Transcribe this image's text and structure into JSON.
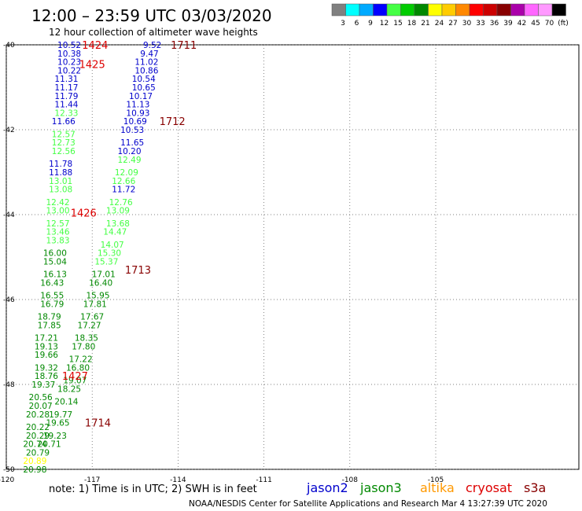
{
  "title": "12:00 – 23:59 UTC 03/03/2020",
  "subtitle": "12 hour collection of altimeter wave heights",
  "color_scale": {
    "colors": [
      "#808080",
      "#00ffff",
      "#00aaff",
      "#0000ff",
      "#44ff44",
      "#00cc00",
      "#008800",
      "#ffff00",
      "#ffcc00",
      "#ff8800",
      "#ff0000",
      "#cc0000",
      "#880000",
      "#aa00aa",
      "#ff66ff",
      "#ff99ff",
      "#000000"
    ],
    "labels": [
      "3",
      "6",
      "9",
      "12",
      "15",
      "18",
      "21",
      "24",
      "27",
      "30",
      "33",
      "36",
      "39",
      "42",
      "45",
      "70",
      "(ft)"
    ]
  },
  "footer": {
    "note": "note:  1) Time is in UTC;  2) SWH is in feet",
    "satellites": [
      {
        "name": "jason2",
        "color": "#0000cc"
      },
      {
        "name": "jason3",
        "color": "#008800"
      },
      {
        "name": "altika",
        "color": "#ff9900"
      },
      {
        "name": "cryosat",
        "color": "#dd0000"
      },
      {
        "name": "s3a",
        "color": "#880000"
      }
    ],
    "credit": "NOAA/NESDIS Center for Satellite Applications and Research   Mar  4 13:27:39 UTC 2020"
  },
  "chart_data": {
    "type": "scatter",
    "xlim": [
      -120,
      -100
    ],
    "ylim": [
      -50,
      -40
    ],
    "x_ticks": [
      "-120",
      "-117",
      "-114",
      "-111",
      "-108",
      "-105"
    ],
    "y_ticks": [
      "-40",
      "-42",
      "-44",
      "-46",
      "-48",
      "-50"
    ],
    "grid": true,
    "tracks": [
      {
        "id": "track-a",
        "color": "#0000cc",
        "points": [
          [
            "-117.8",
            "-40.0",
            "10.52"
          ],
          [
            "-117.8",
            "-40.2",
            "10.38"
          ],
          [
            "-117.8",
            "-40.4",
            "10.23"
          ],
          [
            "-117.8",
            "-40.6",
            "10.22"
          ],
          [
            "-117.9",
            "-40.8",
            "11.31"
          ],
          [
            "-117.9",
            "-41.0",
            "11.17"
          ],
          [
            "-117.9",
            "-41.2",
            "11.79"
          ],
          [
            "-117.9",
            "-41.4",
            "11.44"
          ]
        ]
      },
      {
        "id": "track-a2",
        "color": "#44ff44",
        "points": [
          [
            "-117.9",
            "-41.6",
            "12.33"
          ]
        ]
      },
      {
        "id": "track-a3",
        "color": "#0000cc",
        "points": [
          [
            "-118.0",
            "-41.8",
            "11.66"
          ]
        ]
      },
      {
        "id": "track-a4",
        "color": "#44ff44",
        "points": [
          [
            "-118.0",
            "-42.1",
            "12.57"
          ],
          [
            "-118.0",
            "-42.3",
            "12.73"
          ],
          [
            "-118.0",
            "-42.5",
            "12.56"
          ]
        ]
      },
      {
        "id": "track-a5",
        "color": "#0000cc",
        "points": [
          [
            "-118.1",
            "-42.8",
            "11.78"
          ],
          [
            "-118.1",
            "-43.0",
            "11.88"
          ]
        ]
      },
      {
        "id": "track-a6",
        "color": "#44ff44",
        "points": [
          [
            "-118.1",
            "-43.2",
            "13.01"
          ],
          [
            "-118.1",
            "-43.4",
            "13.08"
          ],
          [
            "-118.2",
            "-43.7",
            "12.42"
          ],
          [
            "-118.2",
            "-43.9",
            "13.00"
          ],
          [
            "-118.2",
            "-44.2",
            "12.57"
          ],
          [
            "-118.2",
            "-44.4",
            "13.46"
          ],
          [
            "-118.2",
            "-44.6",
            "13.83"
          ]
        ]
      },
      {
        "id": "track-a7",
        "color": "#008800",
        "points": [
          [
            "-118.3",
            "-44.9",
            "16.00"
          ],
          [
            "-118.3",
            "-45.1",
            "15.04"
          ],
          [
            "-118.3",
            "-45.4",
            "16.13"
          ],
          [
            "-118.4",
            "-45.6",
            "16.43"
          ],
          [
            "-118.4",
            "-45.9",
            "16.55"
          ],
          [
            "-118.4",
            "-46.1",
            "16.79"
          ],
          [
            "-118.5",
            "-46.4",
            "18.79"
          ],
          [
            "-118.5",
            "-46.6",
            "17.85"
          ],
          [
            "-118.6",
            "-46.9",
            "17.21"
          ],
          [
            "-118.6",
            "-47.1",
            "19.13"
          ],
          [
            "-118.6",
            "-47.3",
            "19.66"
          ],
          [
            "-118.6",
            "-47.6",
            "19.32"
          ],
          [
            "-118.6",
            "-47.8",
            "18.76"
          ],
          [
            "-118.7",
            "-48.0",
            "19.37"
          ],
          [
            "-118.8",
            "-48.3",
            "20.56"
          ],
          [
            "-118.8",
            "-48.5",
            "20.07"
          ],
          [
            "-118.9",
            "-48.7",
            "20.28"
          ],
          [
            "-118.9",
            "-49.0",
            "20.22"
          ],
          [
            "-118.9",
            "-49.2",
            "20.29"
          ],
          [
            "-119.0",
            "-49.4",
            "20.74"
          ],
          [
            "-118.9",
            "-49.6",
            "20.79"
          ]
        ]
      },
      {
        "id": "track-a8",
        "color": "#ffff00",
        "points": [
          [
            "-119.0",
            "-49.8",
            "20.89"
          ]
        ]
      },
      {
        "id": "track-a9",
        "color": "#008800",
        "points": [
          [
            "-119.0",
            "-50.0",
            "20.98"
          ]
        ]
      },
      {
        "id": "track-b",
        "color": "#0000cc",
        "points": [
          [
            "-114.9",
            "-40.0",
            "9.52"
          ],
          [
            "-115.0",
            "-40.2",
            "9.47"
          ],
          [
            "-115.1",
            "-40.4",
            "11.02"
          ],
          [
            "-115.1",
            "-40.6",
            "10.86"
          ],
          [
            "-115.2",
            "-40.8",
            "10.54"
          ],
          [
            "-115.2",
            "-41.0",
            "10.65"
          ],
          [
            "-115.3",
            "-41.2",
            "10.17"
          ],
          [
            "-115.4",
            "-41.4",
            "11.13"
          ],
          [
            "-115.4",
            "-41.6",
            "10.93"
          ],
          [
            "-115.5",
            "-41.8",
            "10.69"
          ],
          [
            "-115.6",
            "-42.0",
            "10.53"
          ],
          [
            "-115.6",
            "-42.3",
            "11.65"
          ],
          [
            "-115.7",
            "-42.5",
            "10.20"
          ]
        ]
      },
      {
        "id": "track-b2",
        "color": "#44ff44",
        "points": [
          [
            "-115.7",
            "-42.7",
            "12.49"
          ],
          [
            "-115.8",
            "-43.0",
            "12.09"
          ],
          [
            "-115.9",
            "-43.2",
            "12.66"
          ]
        ]
      },
      {
        "id": "track-b3",
        "color": "#0000cc",
        "points": [
          [
            "-115.9",
            "-43.4",
            "11.72"
          ]
        ]
      },
      {
        "id": "track-b4",
        "color": "#44ff44",
        "points": [
          [
            "-116.0",
            "-43.7",
            "12.76"
          ],
          [
            "-116.1",
            "-43.9",
            "13.09"
          ],
          [
            "-116.1",
            "-44.2",
            "13.68"
          ],
          [
            "-116.2",
            "-44.4",
            "14.47"
          ],
          [
            "-116.3",
            "-44.7",
            "14.07"
          ],
          [
            "-116.4",
            "-44.9",
            "15.30"
          ],
          [
            "-116.5",
            "-45.1",
            "15.37"
          ]
        ]
      },
      {
        "id": "track-b5",
        "color": "#008800",
        "points": [
          [
            "-116.6",
            "-45.4",
            "17.01"
          ],
          [
            "-116.7",
            "-45.6",
            "16.40"
          ],
          [
            "-116.8",
            "-45.9",
            "15.95"
          ],
          [
            "-116.9",
            "-46.1",
            "17.81"
          ],
          [
            "-117.0",
            "-46.4",
            "17.67"
          ],
          [
            "-117.1",
            "-46.6",
            "17.27"
          ],
          [
            "-117.2",
            "-46.9",
            "18.35"
          ],
          [
            "-117.3",
            "-47.1",
            "17.80"
          ],
          [
            "-117.4",
            "-47.4",
            "17.22"
          ],
          [
            "-117.5",
            "-47.6",
            "16.80"
          ],
          [
            "-117.6",
            "-47.9",
            "19.07"
          ],
          [
            "-117.8",
            "-48.1",
            "18.25"
          ],
          [
            "-117.9",
            "-48.4",
            "20.14"
          ],
          [
            "-118.1",
            "-48.7",
            "19.77"
          ],
          [
            "-118.2",
            "-48.9",
            "19.65"
          ],
          [
            "-118.3",
            "-49.2",
            "19.23"
          ],
          [
            "-118.5",
            "-49.4",
            "20.71"
          ]
        ]
      }
    ],
    "pass_times": [
      {
        "label": "1424",
        "color": "#dd0000",
        "x": "-116.9",
        "y": "-40.0"
      },
      {
        "label": "1425",
        "color": "#dd0000",
        "x": "-117.0",
        "y": "-40.45"
      },
      {
        "label": "1426",
        "color": "#dd0000",
        "x": "-117.3",
        "y": "-43.95"
      },
      {
        "label": "1427",
        "color": "#dd0000",
        "x": "-117.6",
        "y": "-47.8"
      },
      {
        "label": "1711",
        "color": "#880000",
        "x": "-113.8",
        "y": "-40.0"
      },
      {
        "label": "1712",
        "color": "#880000",
        "x": "-114.2",
        "y": "-41.8"
      },
      {
        "label": "1713",
        "color": "#880000",
        "x": "-115.4",
        "y": "-45.3"
      },
      {
        "label": "1714",
        "color": "#880000",
        "x": "-116.8",
        "y": "-48.9"
      }
    ]
  }
}
